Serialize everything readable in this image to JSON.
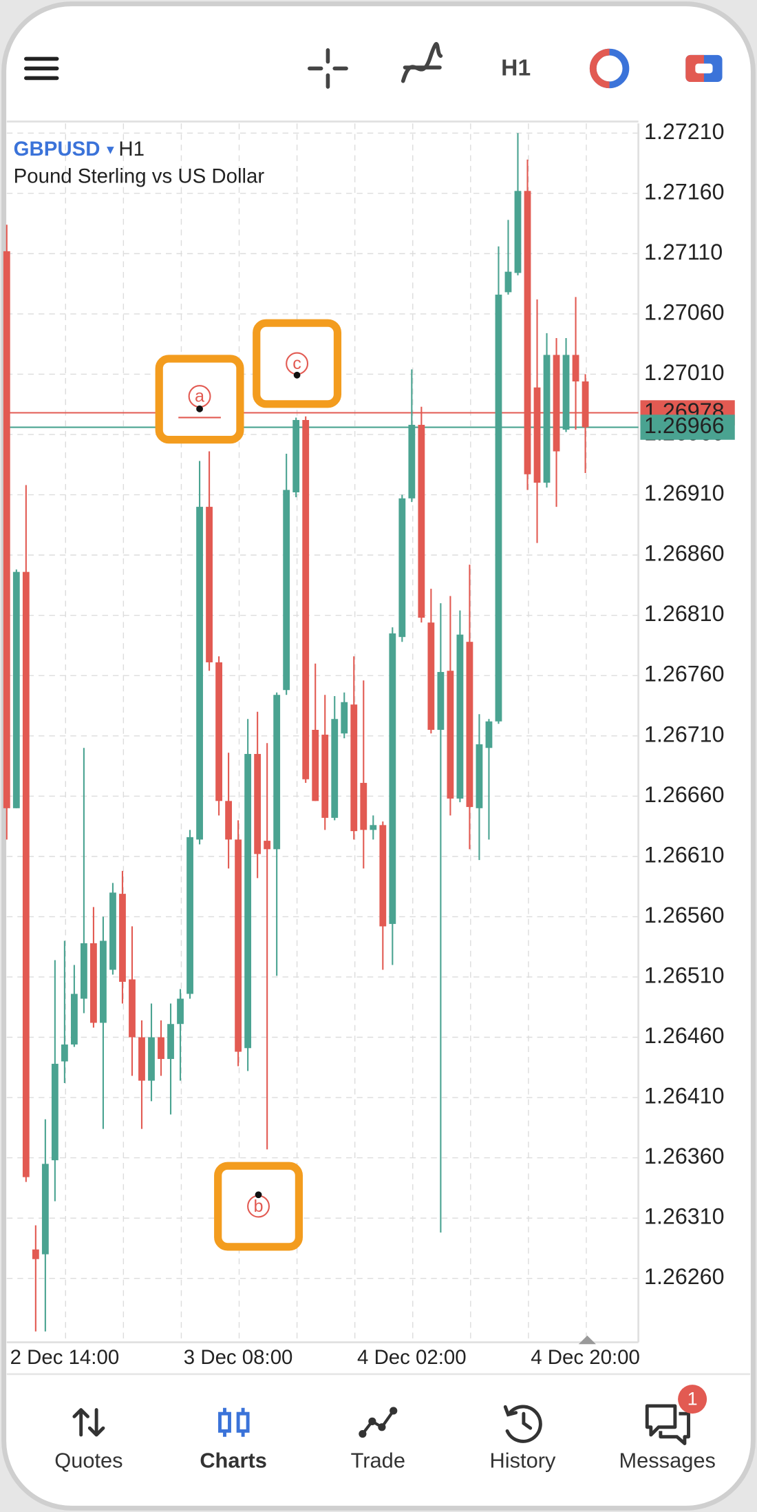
{
  "toolbar": {
    "timeframe": "H1"
  },
  "chart_data": {
    "type": "candlestick",
    "symbol": "GBPUSD",
    "timeframe": "H1",
    "description": "Pound Sterling vs US Dollar",
    "categories": [
      null,
      null,
      null,
      null,
      null,
      null,
      "2 Dec 14:00",
      null,
      null,
      null,
      null,
      null,
      null,
      null,
      null,
      null,
      null,
      null,
      null,
      null,
      null,
      null,
      null,
      null,
      "3 Dec 08:00",
      null,
      null,
      null,
      null,
      null,
      null,
      null,
      null,
      null,
      null,
      null,
      null,
      null,
      null,
      null,
      null,
      null,
      "4 Dec 02:00",
      null,
      null,
      null,
      null,
      null,
      null,
      null,
      null,
      null,
      null,
      null,
      null,
      null,
      null,
      null,
      null,
      null,
      "4 Dec 20:00"
    ],
    "open": [
      1.27112,
      1.2665,
      1.26846,
      1.26284,
      1.2628,
      1.26358,
      1.2644,
      1.26454,
      1.26492,
      1.26538,
      1.26472,
      1.26516,
      1.26579,
      1.26508,
      1.2646,
      1.26424,
      1.2646,
      1.26442,
      1.26471,
      1.26496,
      1.26624,
      1.269,
      1.26771,
      1.26656,
      1.26624,
      1.26451,
      1.26695,
      1.26623,
      1.26616,
      1.26748,
      1.26912,
      1.26972,
      1.26715,
      1.26711,
      1.26642,
      1.26712,
      1.26736,
      1.26671,
      1.26632,
      1.26636,
      1.26554,
      1.26792,
      1.26907,
      1.26968,
      1.26804,
      1.26715,
      1.26764,
      1.26658,
      1.26788,
      1.2665,
      1.267,
      1.26722,
      1.27078,
      1.27094,
      1.27162,
      1.26999,
      1.2692,
      1.27026,
      1.26964,
      1.27026,
      1.27004
    ],
    "high": [
      1.27134,
      1.26848,
      1.26918,
      1.26304,
      1.26392,
      1.26524,
      1.2654,
      1.2652,
      1.267,
      1.26568,
      1.2656,
      1.26588,
      1.26598,
      1.26552,
      1.26474,
      1.26488,
      1.26474,
      1.26488,
      1.265,
      1.26632,
      1.26938,
      1.26946,
      1.26776,
      1.26696,
      1.2664,
      1.26724,
      1.2673,
      1.26704,
      1.26746,
      1.26944,
      1.26974,
      1.26975,
      1.2677,
      1.26744,
      1.26743,
      1.26746,
      1.26776,
      1.26756,
      1.26644,
      1.26639,
      1.268,
      1.2691,
      1.27014,
      1.26983,
      1.26832,
      1.2682,
      1.26826,
      1.26814,
      1.26852,
      1.26728,
      1.26724,
      1.27116,
      1.27138,
      1.2721,
      1.27188,
      1.27072,
      1.27044,
      1.2704,
      1.2704,
      1.27074,
      1.2701
    ],
    "low": [
      1.26624,
      1.2665,
      1.2634,
      1.26216,
      1.26216,
      1.26324,
      1.26422,
      1.26452,
      1.2648,
      1.26468,
      1.26384,
      1.26512,
      1.26488,
      1.26428,
      1.26384,
      1.26407,
      1.26428,
      1.26396,
      1.26424,
      1.26492,
      1.2662,
      1.26764,
      1.26644,
      1.266,
      1.26436,
      1.26432,
      1.26592,
      1.26367,
      1.26511,
      1.26744,
      1.26908,
      1.26671,
      1.26656,
      1.26632,
      1.2664,
      1.26708,
      1.26624,
      1.266,
      1.26624,
      1.26516,
      1.2652,
      1.26788,
      1.26904,
      1.26804,
      1.26712,
      1.26298,
      1.26644,
      1.26655,
      1.26616,
      1.26607,
      1.26624,
      1.2672,
      1.27076,
      1.27092,
      1.26914,
      1.2687,
      1.26916,
      1.269,
      1.26962,
      1.26964,
      1.26928
    ],
    "close": [
      1.2665,
      1.26846,
      1.26344,
      1.26276,
      1.26355,
      1.26438,
      1.26454,
      1.26496,
      1.26538,
      1.26472,
      1.2654,
      1.2658,
      1.26506,
      1.2646,
      1.26424,
      1.2646,
      1.26442,
      1.26471,
      1.26492,
      1.26626,
      1.269,
      1.26771,
      1.26656,
      1.26624,
      1.26448,
      1.26695,
      1.26612,
      1.26616,
      1.26744,
      1.26914,
      1.26972,
      1.26674,
      1.26656,
      1.26642,
      1.26724,
      1.26738,
      1.26631,
      1.26632,
      1.26636,
      1.26552,
      1.26795,
      1.26907,
      1.26968,
      1.26808,
      1.26715,
      1.26763,
      1.26658,
      1.26794,
      1.26651,
      1.26703,
      1.26722,
      1.27076,
      1.27095,
      1.27162,
      1.26927,
      1.2692,
      1.27026,
      1.26946,
      1.27026,
      1.27004,
      1.26966
    ],
    "up_color": "#4aa391",
    "down_color": "#e25a52",
    "ylim": [
      1.26207,
      1.27218
    ],
    "yticks": [
      {
        "value": 1.2721,
        "label": "1.27210"
      },
      {
        "value": 1.2716,
        "label": "1.27160"
      },
      {
        "value": 1.2711,
        "label": "1.27110"
      },
      {
        "value": 1.2706,
        "label": "1.27060"
      },
      {
        "value": 1.2701,
        "label": "1.27010"
      },
      {
        "value": 1.2696,
        "label": "1.26960"
      },
      {
        "value": 1.2691,
        "label": "1.26910"
      },
      {
        "value": 1.2686,
        "label": "1.26860"
      },
      {
        "value": 1.2681,
        "label": "1.26810"
      },
      {
        "value": 1.2676,
        "label": "1.26760"
      },
      {
        "value": 1.2671,
        "label": "1.26710"
      },
      {
        "value": 1.2666,
        "label": "1.26660"
      },
      {
        "value": 1.2661,
        "label": "1.26610"
      },
      {
        "value": 1.2656,
        "label": "1.26560"
      },
      {
        "value": 1.2651,
        "label": "1.26510"
      },
      {
        "value": 1.2646,
        "label": "1.26460"
      },
      {
        "value": 1.2641,
        "label": "1.26410"
      },
      {
        "value": 1.2636,
        "label": "1.26360"
      },
      {
        "value": 1.2631,
        "label": "1.26310"
      },
      {
        "value": 1.2626,
        "label": "1.26260"
      }
    ],
    "grid": true,
    "ask_line": {
      "value": 1.26978,
      "color": "#e25a52"
    },
    "bid_line": {
      "value": 1.26966,
      "color": "#4aa391"
    },
    "annotations": [
      "a",
      "b",
      "c"
    ]
  },
  "nav": {
    "items": [
      "Quotes",
      "Charts",
      "Trade",
      "History",
      "Messages"
    ],
    "messages_badge": 1
  }
}
